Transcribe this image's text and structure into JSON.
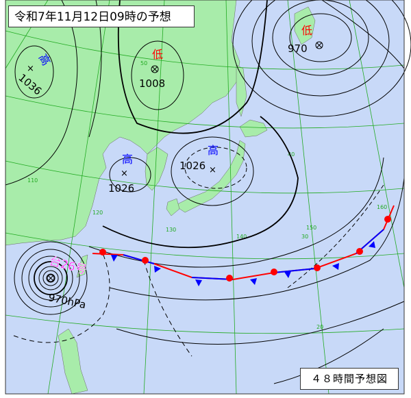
{
  "title": "令和7年11月12日09時の予想",
  "forecast_label": "４８時間予想図",
  "colors": {
    "land": "#a8ecaa",
    "sea": "#c8d9f8",
    "isobar": "#000000",
    "graticule": "#22aa22",
    "high": "#0000ff",
    "low": "#ff0000",
    "typhoon": "#ff00ff",
    "warm_front": "#ff0000",
    "cold_front": "#0000ff"
  },
  "pressure_systems": [
    {
      "type": "high",
      "label": "高",
      "pressure": "1036"
    },
    {
      "type": "low",
      "label": "低",
      "pressure": "1008"
    },
    {
      "type": "low",
      "label": "低",
      "pressure": "970"
    },
    {
      "type": "high",
      "label": "高",
      "pressure": "1026",
      "name": "yellow-sea-high"
    },
    {
      "type": "high",
      "label": "高",
      "pressure": "1026",
      "name": "japan-high"
    }
  ],
  "typhoon": {
    "label": "台26号",
    "pressure": "970hPa"
  },
  "graticule_labels": [
    "50",
    "40",
    "30",
    "20",
    "110",
    "120",
    "130",
    "140",
    "150",
    "160"
  ],
  "front_type": "stationary"
}
